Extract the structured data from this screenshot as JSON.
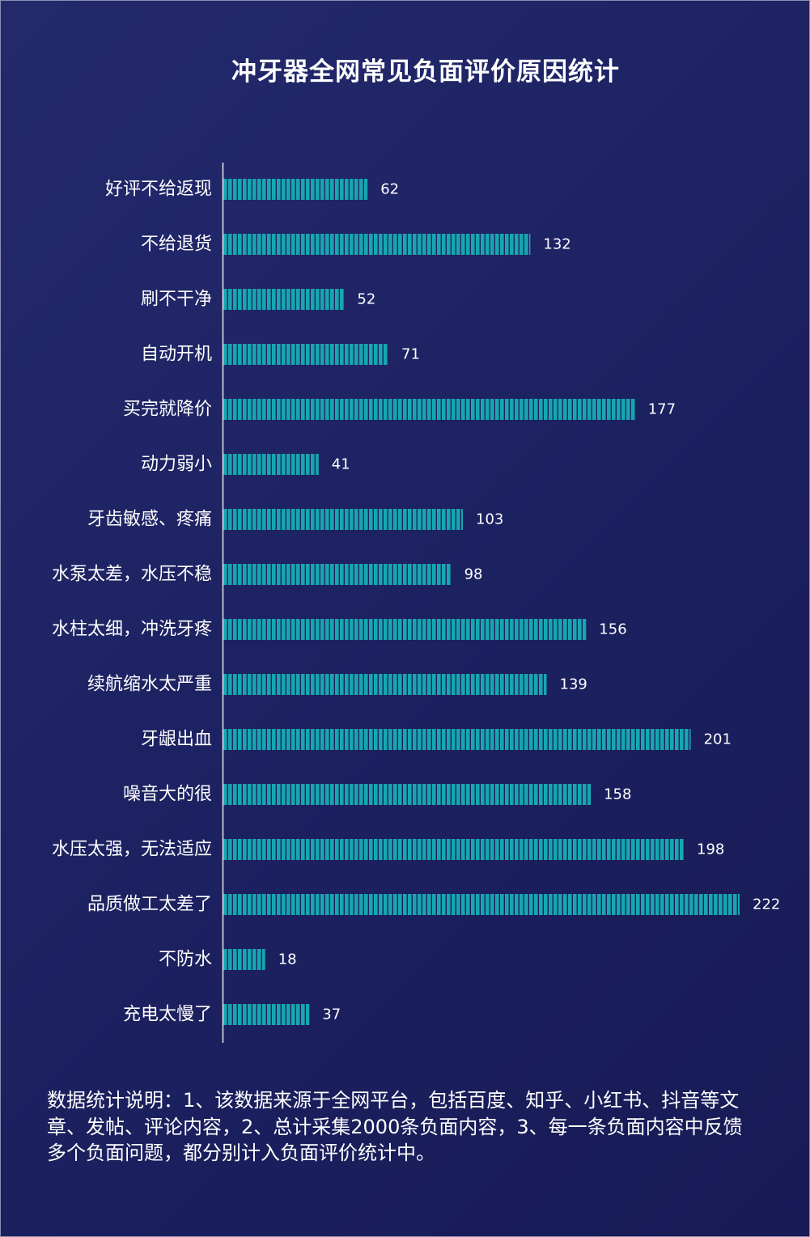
{
  "chart_data": {
    "type": "bar",
    "orientation": "horizontal",
    "title": "冲牙器全网常见负面评价原因统计",
    "categories": [
      "好评不给返现",
      "不给退货",
      "刷不干净",
      "自动开机",
      "买完就降价",
      "动力弱小",
      "牙齿敏感、疼痛",
      "水泵太差，水压不稳",
      "水柱太细，冲洗牙疼",
      "续航缩水太严重",
      "牙龈出血",
      "噪音大的很",
      "水压太强，无法适应",
      "品质做工太差了",
      "不防水",
      "充电太慢了"
    ],
    "values": [
      62,
      132,
      52,
      71,
      177,
      41,
      103,
      98,
      156,
      139,
      201,
      158,
      198,
      222,
      18,
      37
    ],
    "xlim": [
      0,
      222
    ],
    "bar_style": "segmented",
    "grid": false,
    "colors": {
      "bar": "#17a6b0",
      "bar_gap": "#1f2666",
      "axis": "#e8e8f0",
      "text": "#ffffff"
    }
  },
  "note": "数据统计说明：1、该数据来源于全网平台，包括百度、知乎、小红书、抖音等文章、发帖、评论内容，2、总计采集2000条负面内容，3、每一条负面内容中反馈多个负面问题，都分别计入负面评价统计中。"
}
